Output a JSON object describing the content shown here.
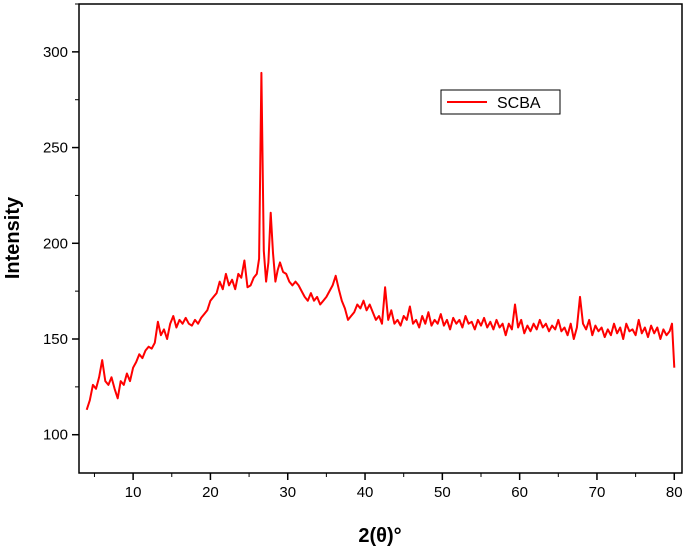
{
  "chart_data": {
    "type": "line",
    "xlabel": "2(θ)°",
    "ylabel": "Intensity",
    "xlim": [
      3,
      81
    ],
    "ylim": [
      80,
      325
    ],
    "xticks": [
      10,
      20,
      30,
      40,
      50,
      60,
      70,
      80
    ],
    "yticks": [
      100,
      150,
      200,
      250,
      300
    ],
    "grid": false,
    "legend_position": "top-right",
    "series": [
      {
        "name": "SCBA",
        "color": "#ff0000",
        "points": [
          [
            4,
            113
          ],
          [
            4.4,
            118
          ],
          [
            4.8,
            126
          ],
          [
            5.2,
            124
          ],
          [
            5.6,
            130
          ],
          [
            6.0,
            139
          ],
          [
            6.4,
            128
          ],
          [
            6.8,
            126
          ],
          [
            7.2,
            130
          ],
          [
            7.6,
            124
          ],
          [
            8.0,
            119
          ],
          [
            8.4,
            128
          ],
          [
            8.8,
            126
          ],
          [
            9.2,
            132
          ],
          [
            9.6,
            128
          ],
          [
            10.0,
            135
          ],
          [
            10.4,
            138
          ],
          [
            10.8,
            142
          ],
          [
            11.2,
            140
          ],
          [
            11.6,
            144
          ],
          [
            12.0,
            146
          ],
          [
            12.4,
            145
          ],
          [
            12.8,
            148
          ],
          [
            13.2,
            159
          ],
          [
            13.6,
            152
          ],
          [
            14.0,
            155
          ],
          [
            14.4,
            150
          ],
          [
            14.8,
            158
          ],
          [
            15.2,
            162
          ],
          [
            15.6,
            156
          ],
          [
            16.0,
            160
          ],
          [
            16.4,
            158
          ],
          [
            16.8,
            161
          ],
          [
            17.2,
            158
          ],
          [
            17.6,
            157
          ],
          [
            18.0,
            160
          ],
          [
            18.4,
            158
          ],
          [
            18.8,
            161
          ],
          [
            19.2,
            163
          ],
          [
            19.6,
            165
          ],
          [
            20.0,
            170
          ],
          [
            20.4,
            172
          ],
          [
            20.8,
            174
          ],
          [
            21.2,
            180
          ],
          [
            21.6,
            176
          ],
          [
            22.0,
            184
          ],
          [
            22.4,
            178
          ],
          [
            22.8,
            181
          ],
          [
            23.2,
            176
          ],
          [
            23.6,
            184
          ],
          [
            24.0,
            182
          ],
          [
            24.4,
            191
          ],
          [
            24.8,
            177
          ],
          [
            25.2,
            178
          ],
          [
            25.6,
            182
          ],
          [
            26.0,
            184
          ],
          [
            26.3,
            192
          ],
          [
            26.6,
            289
          ],
          [
            26.9,
            196
          ],
          [
            27.2,
            180
          ],
          [
            27.5,
            190
          ],
          [
            27.8,
            216
          ],
          [
            28.1,
            195
          ],
          [
            28.4,
            180
          ],
          [
            28.7,
            186
          ],
          [
            29.0,
            190
          ],
          [
            29.4,
            185
          ],
          [
            29.8,
            184
          ],
          [
            30.2,
            180
          ],
          [
            30.6,
            178
          ],
          [
            31.0,
            180
          ],
          [
            31.4,
            178
          ],
          [
            31.8,
            175
          ],
          [
            32.2,
            172
          ],
          [
            32.6,
            170
          ],
          [
            33.0,
            174
          ],
          [
            33.4,
            170
          ],
          [
            33.8,
            172
          ],
          [
            34.2,
            168
          ],
          [
            34.6,
            170
          ],
          [
            35.0,
            172
          ],
          [
            35.4,
            175
          ],
          [
            35.8,
            178
          ],
          [
            36.2,
            183
          ],
          [
            36.6,
            176
          ],
          [
            37.0,
            170
          ],
          [
            37.4,
            166
          ],
          [
            37.8,
            160
          ],
          [
            38.2,
            162
          ],
          [
            38.6,
            164
          ],
          [
            39.0,
            168
          ],
          [
            39.4,
            166
          ],
          [
            39.8,
            170
          ],
          [
            40.2,
            165
          ],
          [
            40.6,
            168
          ],
          [
            41.0,
            164
          ],
          [
            41.4,
            160
          ],
          [
            41.8,
            162
          ],
          [
            42.2,
            158
          ],
          [
            42.6,
            177
          ],
          [
            43.0,
            160
          ],
          [
            43.4,
            165
          ],
          [
            43.8,
            158
          ],
          [
            44.2,
            160
          ],
          [
            44.6,
            157
          ],
          [
            45.0,
            162
          ],
          [
            45.4,
            160
          ],
          [
            45.8,
            167
          ],
          [
            46.2,
            158
          ],
          [
            46.6,
            160
          ],
          [
            47.0,
            156
          ],
          [
            47.4,
            162
          ],
          [
            47.8,
            158
          ],
          [
            48.2,
            164
          ],
          [
            48.6,
            157
          ],
          [
            49.0,
            160
          ],
          [
            49.4,
            158
          ],
          [
            49.8,
            163
          ],
          [
            50.2,
            157
          ],
          [
            50.6,
            160
          ],
          [
            51.0,
            155
          ],
          [
            51.4,
            161
          ],
          [
            51.8,
            158
          ],
          [
            52.2,
            160
          ],
          [
            52.6,
            156
          ],
          [
            53.0,
            162
          ],
          [
            53.4,
            158
          ],
          [
            53.8,
            159
          ],
          [
            54.2,
            155
          ],
          [
            54.6,
            160
          ],
          [
            55.0,
            157
          ],
          [
            55.4,
            161
          ],
          [
            55.8,
            156
          ],
          [
            56.2,
            159
          ],
          [
            56.6,
            155
          ],
          [
            57.0,
            160
          ],
          [
            57.4,
            156
          ],
          [
            57.8,
            158
          ],
          [
            58.2,
            152
          ],
          [
            58.6,
            158
          ],
          [
            59.0,
            155
          ],
          [
            59.4,
            168
          ],
          [
            59.8,
            156
          ],
          [
            60.2,
            160
          ],
          [
            60.6,
            153
          ],
          [
            61.0,
            157
          ],
          [
            61.4,
            154
          ],
          [
            61.8,
            158
          ],
          [
            62.2,
            155
          ],
          [
            62.6,
            160
          ],
          [
            63.0,
            156
          ],
          [
            63.4,
            158
          ],
          [
            63.8,
            154
          ],
          [
            64.2,
            157
          ],
          [
            64.6,
            155
          ],
          [
            65.0,
            160
          ],
          [
            65.4,
            154
          ],
          [
            65.8,
            156
          ],
          [
            66.2,
            152
          ],
          [
            66.6,
            158
          ],
          [
            67.0,
            150
          ],
          [
            67.4,
            156
          ],
          [
            67.8,
            172
          ],
          [
            68.2,
            158
          ],
          [
            68.6,
            155
          ],
          [
            69.0,
            160
          ],
          [
            69.4,
            152
          ],
          [
            69.8,
            157
          ],
          [
            70.2,
            154
          ],
          [
            70.6,
            156
          ],
          [
            71.0,
            151
          ],
          [
            71.4,
            155
          ],
          [
            71.8,
            152
          ],
          [
            72.2,
            158
          ],
          [
            72.6,
            153
          ],
          [
            73.0,
            156
          ],
          [
            73.4,
            150
          ],
          [
            73.8,
            158
          ],
          [
            74.2,
            154
          ],
          [
            74.6,
            155
          ],
          [
            75.0,
            152
          ],
          [
            75.4,
            160
          ],
          [
            75.8,
            153
          ],
          [
            76.2,
            156
          ],
          [
            76.6,
            151
          ],
          [
            77.0,
            157
          ],
          [
            77.4,
            153
          ],
          [
            77.8,
            156
          ],
          [
            78.2,
            150
          ],
          [
            78.6,
            155
          ],
          [
            79.0,
            152
          ],
          [
            79.4,
            154
          ],
          [
            79.7,
            158
          ],
          [
            80.0,
            135
          ]
        ]
      }
    ]
  }
}
